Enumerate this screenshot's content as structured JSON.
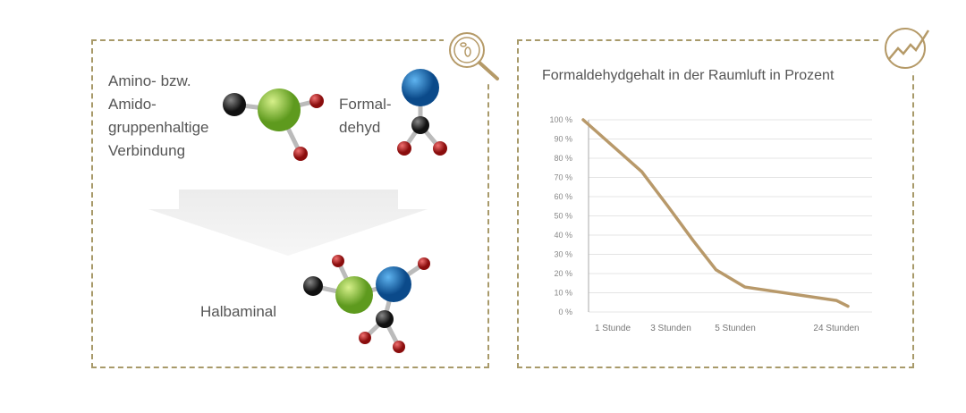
{
  "left_panel": {
    "reactant1_label": [
      "Amino- bzw.",
      "Amido-",
      "gruppenhaltige",
      "Verbindung"
    ],
    "reactant2_label": [
      "Formal-",
      "dehyd"
    ],
    "product_label": "Halbaminal",
    "icon": "magnifier-microbe-icon"
  },
  "right_panel": {
    "icon": "trend-chart-icon"
  },
  "colors": {
    "accent": "#b59a68",
    "dash": "#a89a6a",
    "line": "#b8996a",
    "green": "#8cc63f",
    "blue": "#1a6fb5",
    "red": "#c8201e",
    "black": "#333333"
  },
  "chart_data": {
    "type": "line",
    "title": "Formaldehydgehalt in der Raumluft in Prozent",
    "xlabel": "",
    "ylabel": "",
    "x_unit": "Stunden",
    "x_ticks": [
      {
        "x": 1,
        "label": "1 Stunde"
      },
      {
        "x": 3,
        "label": "3 Stunden"
      },
      {
        "x": 5,
        "label": "5 Stunden"
      },
      {
        "x": 24,
        "label": "24 Stunden"
      }
    ],
    "y_ticks": [
      "0 %",
      "10 %",
      "20 %",
      "30 %",
      "40 %",
      "50 %",
      "60 %",
      "70 %",
      "80 %",
      "90 %",
      "100 %"
    ],
    "ylim": [
      0,
      100
    ],
    "grid": true,
    "series": [
      {
        "points": [
          [
            0,
            100
          ],
          [
            2,
            73
          ],
          [
            2.9,
            55
          ],
          [
            3.7,
            37
          ],
          [
            4.4,
            22
          ],
          [
            6.8,
            13
          ],
          [
            24,
            6
          ],
          [
            26,
            3
          ]
        ]
      }
    ]
  }
}
